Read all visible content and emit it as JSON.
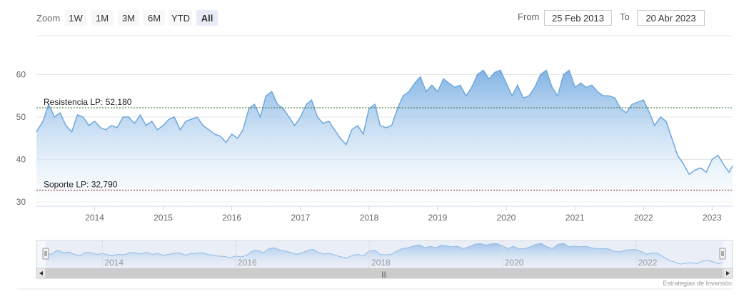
{
  "range_selector": {
    "zoom_label": "Zoom",
    "buttons": [
      "1W",
      "1M",
      "3M",
      "6M",
      "YTD",
      "All"
    ],
    "selected": "All",
    "from_label": "From",
    "from_value": "25 Feb 2013",
    "to_label": "To",
    "to_value": "20 Abr 2023"
  },
  "credit": "Estrategias de Inversión",
  "navigator": {
    "labels": [
      "2014",
      "2016",
      "2018",
      "2020",
      "2022"
    ],
    "scrollbar_grip": "|||"
  },
  "colors": {
    "series_line": "#6fa8dc",
    "series_fill_top": "#7cb0e3",
    "series_fill_bottom": "#ffffff",
    "resistance_line": "#2e6b2e",
    "support_line": "#8b1a1a",
    "grid": "#e6e6e6",
    "selected_button": "#e6ebf5",
    "navigator_mask": "#d6e0f0",
    "scrollbar": "#cccccc"
  },
  "chart_data": {
    "type": "area",
    "ylim": [
      30,
      62
    ],
    "yticks": [
      30,
      40,
      50,
      60
    ],
    "xlim": [
      "2013-02-25",
      "2023-04-20"
    ],
    "xticks": [
      "2014",
      "2015",
      "2016",
      "2017",
      "2018",
      "2019",
      "2020",
      "2021",
      "2022",
      "2023"
    ],
    "grid": true,
    "series": [
      {
        "x": [
          "2013-02-25",
          "2013-04-01",
          "2013-05-01",
          "2013-06-01",
          "2013-07-01",
          "2013-08-01",
          "2013-09-01",
          "2013-10-01",
          "2013-11-01",
          "2013-12-01",
          "2014-01-01",
          "2014-02-01",
          "2014-03-01",
          "2014-04-01",
          "2014-05-01",
          "2014-06-01",
          "2014-07-01",
          "2014-08-01",
          "2014-09-01",
          "2014-10-01",
          "2014-11-01",
          "2014-12-01",
          "2015-01-01",
          "2015-02-01",
          "2015-03-01",
          "2015-04-01",
          "2015-05-01",
          "2015-06-01",
          "2015-07-01",
          "2015-08-01",
          "2015-09-01",
          "2015-10-01",
          "2015-11-01",
          "2015-12-01",
          "2016-01-01",
          "2016-02-01",
          "2016-03-01",
          "2016-04-01",
          "2016-05-01",
          "2016-06-01",
          "2016-07-01",
          "2016-08-01",
          "2016-09-01",
          "2016-10-01",
          "2016-11-01",
          "2016-12-01",
          "2017-01-01",
          "2017-02-01",
          "2017-03-01",
          "2017-04-01",
          "2017-05-01",
          "2017-06-01",
          "2017-07-01",
          "2017-08-01",
          "2017-09-01",
          "2017-10-01",
          "2017-11-01",
          "2017-12-01",
          "2018-01-01",
          "2018-02-01",
          "2018-03-01",
          "2018-04-01",
          "2018-05-01",
          "2018-06-01",
          "2018-07-01",
          "2018-08-01",
          "2018-09-01",
          "2018-10-01",
          "2018-11-01",
          "2018-12-01",
          "2019-01-01",
          "2019-02-01",
          "2019-03-01",
          "2019-04-01",
          "2019-05-01",
          "2019-06-01",
          "2019-07-01",
          "2019-08-01",
          "2019-09-01",
          "2019-10-01",
          "2019-11-01",
          "2019-12-01",
          "2020-01-01",
          "2020-02-01",
          "2020-03-01",
          "2020-04-01",
          "2020-05-01",
          "2020-06-01",
          "2020-07-01",
          "2020-08-01",
          "2020-09-01",
          "2020-10-01",
          "2020-11-01",
          "2020-12-01",
          "2021-01-01",
          "2021-02-01",
          "2021-03-01",
          "2021-04-01",
          "2021-05-01",
          "2021-06-01",
          "2021-07-01",
          "2021-08-01",
          "2021-09-01",
          "2021-10-01",
          "2021-11-01",
          "2021-12-01",
          "2022-01-01",
          "2022-02-01",
          "2022-03-01",
          "2022-04-01",
          "2022-05-01",
          "2022-06-01",
          "2022-07-01",
          "2022-08-01",
          "2022-09-01",
          "2022-10-01",
          "2022-11-01",
          "2022-12-01",
          "2023-01-01",
          "2023-02-01",
          "2023-03-01",
          "2023-04-01",
          "2023-04-20"
        ],
        "values": [
          46.5,
          49,
          53,
          50,
          51,
          48,
          46.5,
          50.5,
          50,
          48,
          49,
          47.5,
          47,
          48,
          47.5,
          50,
          50,
          48.5,
          50.5,
          48,
          49,
          47,
          48,
          49.5,
          50,
          47,
          49,
          49.5,
          50,
          48,
          47,
          46,
          45.5,
          44,
          46,
          45,
          47,
          52,
          53,
          50,
          55,
          56,
          53,
          52,
          50,
          48,
          50,
          53,
          54,
          50,
          48.5,
          49,
          47,
          45,
          43.5,
          47,
          48,
          46,
          52,
          53,
          48,
          47.5,
          48,
          52,
          55,
          56,
          58,
          59.5,
          56,
          57.5,
          56,
          59,
          58,
          57,
          57.5,
          55,
          57,
          60,
          61,
          59,
          60.5,
          61,
          58,
          55,
          57.5,
          54.5,
          55,
          57,
          60,
          61,
          57,
          55,
          60,
          61,
          57,
          58,
          57,
          57.5,
          56,
          55,
          55,
          54.5,
          52,
          51,
          53,
          53.5,
          54,
          51,
          48,
          50,
          49,
          45,
          41,
          39,
          36.5,
          37.5,
          38,
          37,
          40,
          41,
          39,
          37,
          38.5
        ]
      }
    ],
    "annotations": [
      {
        "label": "Resistencia LP: 52,180",
        "y": 52.18
      },
      {
        "label": "Soporte LP: 32,790",
        "y": 32.79
      }
    ]
  }
}
